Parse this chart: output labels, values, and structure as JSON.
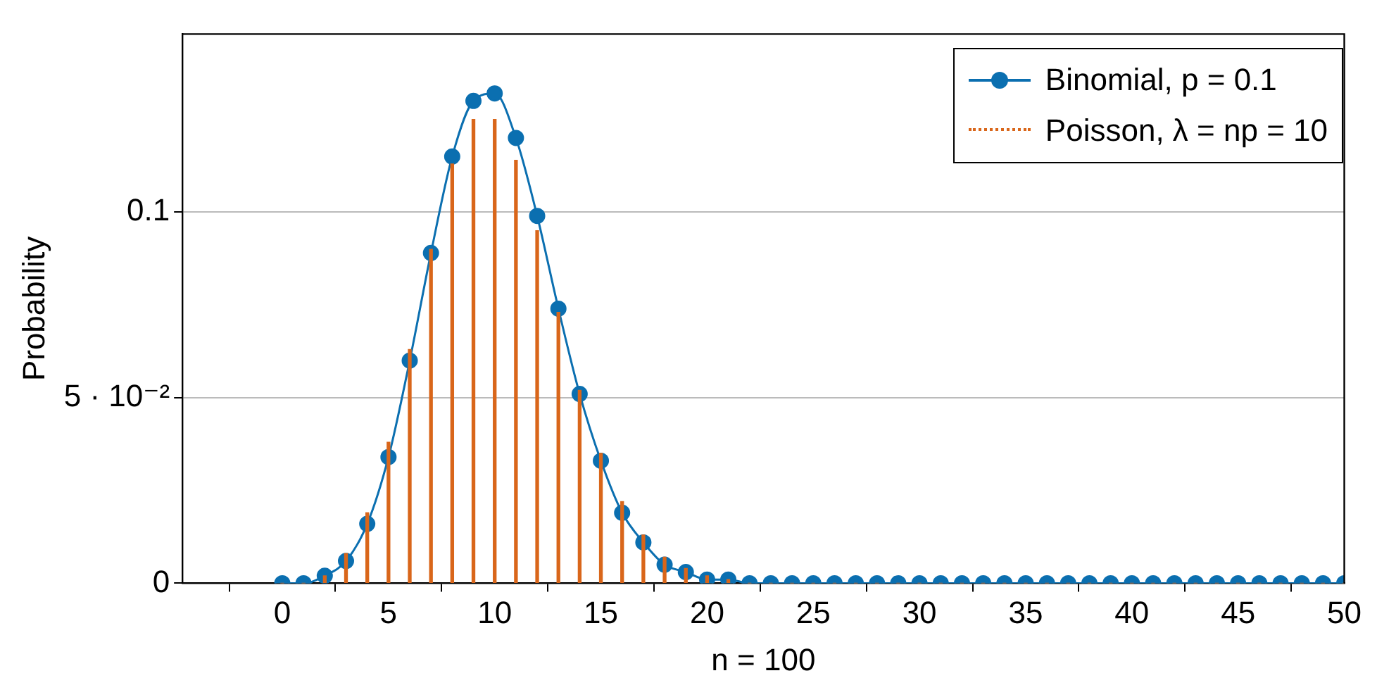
{
  "chart_data": {
    "type": "line",
    "xlabel": "n = 100",
    "ylabel": "Probability",
    "x": [
      0,
      1,
      2,
      3,
      4,
      5,
      6,
      7,
      8,
      9,
      10,
      11,
      12,
      13,
      14,
      15,
      16,
      17,
      18,
      19,
      20,
      21,
      22,
      23,
      24,
      25,
      26,
      27,
      28,
      29,
      30,
      31,
      32,
      33,
      34,
      35,
      36,
      37,
      38,
      39,
      40,
      41,
      42,
      43,
      44,
      45,
      46,
      47,
      48,
      49,
      50
    ],
    "series": [
      {
        "name": "Binomial, p = 0.1",
        "color": "#0b6fb0",
        "values": [
          0,
          0,
          0.002,
          0.006,
          0.016,
          0.034,
          0.06,
          0.089,
          0.115,
          0.13,
          0.132,
          0.12,
          0.099,
          0.074,
          0.051,
          0.033,
          0.019,
          0.011,
          0.005,
          0.003,
          0.001,
          0.001,
          0,
          0,
          0,
          0,
          0,
          0,
          0,
          0,
          0,
          0,
          0,
          0,
          0,
          0,
          0,
          0,
          0,
          0,
          0,
          0,
          0,
          0,
          0,
          0,
          0,
          0,
          0,
          0,
          0
        ]
      },
      {
        "name": "Poisson, λ = np = 10",
        "color": "#d9661a",
        "type": "bar",
        "values": [
          0,
          0,
          0.002,
          0.008,
          0.019,
          0.038,
          0.063,
          0.09,
          0.113,
          0.125,
          0.125,
          0.114,
          0.095,
          0.073,
          0.052,
          0.035,
          0.022,
          0.013,
          0.007,
          0.004,
          0.002,
          0.001,
          0,
          0,
          0,
          0,
          0,
          0,
          0,
          0,
          0,
          0,
          0,
          0,
          0,
          0,
          0,
          0,
          0,
          0,
          0,
          0,
          0,
          0,
          0,
          0,
          0,
          0,
          0,
          0,
          0
        ]
      }
    ],
    "xlim": [
      -4.7,
      50
    ],
    "xticks": [
      0,
      5,
      10,
      15,
      20,
      25,
      30,
      35,
      40,
      45,
      50
    ],
    "ylim": [
      0,
      0.148
    ],
    "yticks": [
      0,
      {
        "value": 0.05,
        "label": "5 · 10⁻²"
      },
      0.1
    ],
    "grid": "y",
    "legend": "top right",
    "marker": "circle",
    "line_style": "solid"
  }
}
